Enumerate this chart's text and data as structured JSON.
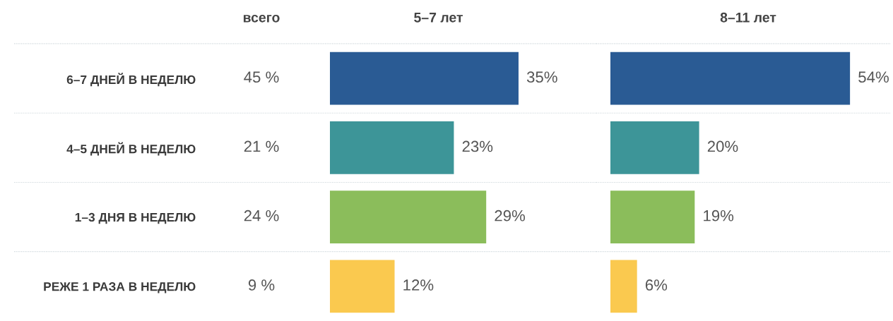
{
  "chart_data": [
    {
      "type": "other",
      "title": "всего",
      "categories": [
        "6–7 ДНЕЙ В НЕДЕЛЮ",
        "4–5 ДНЕЙ В НЕДЕЛЮ",
        "1–3 ДНЯ В НЕДЕЛЮ",
        "РЕЖЕ 1 РАЗА В НЕДЕЛЮ"
      ],
      "value_labels": [
        "45 %",
        "21 %",
        "24 %",
        "9 %"
      ]
    },
    {
      "type": "bar",
      "orientation": "horizontal",
      "title": "5–7 лет",
      "values": [
        35,
        23,
        29,
        12
      ],
      "colors": [
        "#2a5b94",
        "#3d9598",
        "#8bbd5b",
        "#fac94f"
      ],
      "value_labels": [
        "35%",
        "23%",
        "29%",
        "12%"
      ],
      "grid": "y"
    },
    {
      "type": "bar",
      "orientation": "horizontal",
      "title": "8–11 лет",
      "values": [
        54,
        20,
        19,
        6
      ],
      "colors": [
        "#2a5b94",
        "#3d9598",
        "#8bbd5b",
        "#fac94f"
      ],
      "value_labels": [
        "54%",
        "20%",
        "19%",
        "6%"
      ],
      "grid": "y"
    }
  ]
}
